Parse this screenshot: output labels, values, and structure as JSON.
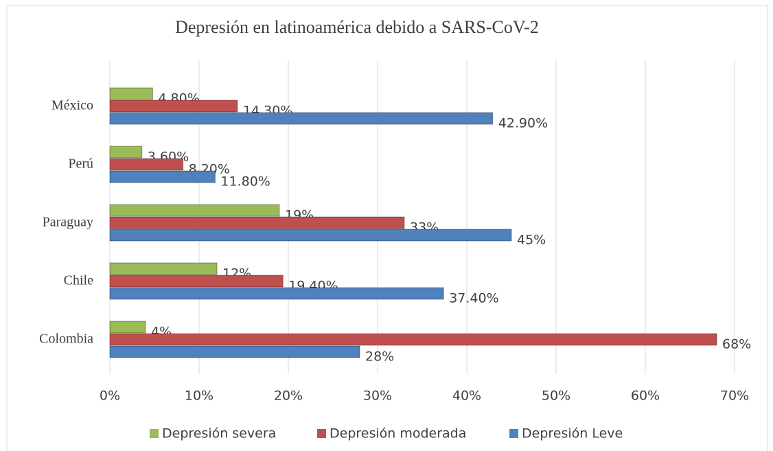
{
  "chart_data": {
    "type": "hbar",
    "title": "Depresión en latinoamérica  debido a SARS-CoV-2",
    "categories": [
      "México",
      "Perú",
      "Paraguay",
      "Chile",
      "Colombia"
    ],
    "series": [
      {
        "name": "Depresión severa",
        "color": "#9bbb59",
        "values": [
          4.8,
          3.6,
          19,
          12,
          4
        ],
        "value_labels": [
          "4.80%",
          "3.60%",
          "19%",
          "12%",
          "4%"
        ]
      },
      {
        "name": "Depresión moderada",
        "color": "#c0504d",
        "values": [
          14.3,
          8.2,
          33,
          19.4,
          68
        ],
        "value_labels": [
          "14.30%",
          "8.20%",
          "33%",
          "19.40%",
          "68%"
        ]
      },
      {
        "name": "Depresión Leve",
        "color": "#4f81bd",
        "values": [
          42.9,
          11.8,
          45,
          37.4,
          28
        ],
        "value_labels": [
          "42.90%",
          "11.80%",
          "45%",
          "37.40%",
          "28%"
        ]
      }
    ],
    "xlim": [
      0,
      70
    ],
    "xticks": [
      {
        "value": 0,
        "label": "0%"
      },
      {
        "value": 10,
        "label": "10%"
      },
      {
        "value": 20,
        "label": "20%"
      },
      {
        "value": 30,
        "label": "30%"
      },
      {
        "value": 40,
        "label": "40%"
      },
      {
        "value": 50,
        "label": "50%"
      },
      {
        "value": 60,
        "label": "60%"
      },
      {
        "value": 70,
        "label": "70%"
      }
    ],
    "grid": true,
    "legend": "bottom"
  }
}
